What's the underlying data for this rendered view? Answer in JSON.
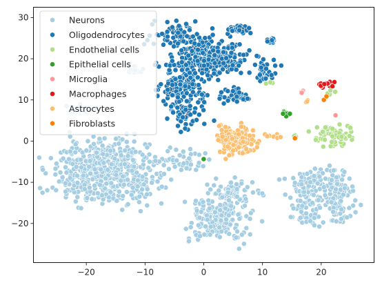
{
  "chart_data": {
    "type": "scatter",
    "title": "",
    "xlabel": "",
    "ylabel": "",
    "xlim": [
      -29,
      29
    ],
    "ylim": [
      -29.5,
      32.5
    ],
    "xticks": [
      -20,
      -10,
      0,
      10,
      20
    ],
    "yticks": [
      -20,
      -10,
      0,
      10,
      20,
      30
    ],
    "grid": false,
    "legend_position": "top-left",
    "series": [
      {
        "name": "Neurons",
        "color": "#a6cee3",
        "clusters": [
          {
            "center": [
              -16.5,
              -7.5
            ],
            "spread": [
              5.8,
              5.0
            ],
            "n": 560
          },
          {
            "center": [
              2.5,
              -19
            ],
            "spread": [
              3.8,
              3.6
            ],
            "n": 180
          },
          {
            "center": [
              5.2,
              -12.5
            ],
            "spread": [
              3.2,
              2.0
            ],
            "n": 70
          },
          {
            "center": [
              -2.5,
              -4.5
            ],
            "spread": [
              2.2,
              1.6
            ],
            "n": 40
          },
          {
            "center": [
              17.5,
              -14.5
            ],
            "spread": [
              2.0,
              4.2
            ],
            "n": 90
          },
          {
            "center": [
              22.5,
              -14.5
            ],
            "spread": [
              2.0,
              4.0
            ],
            "n": 90
          },
          {
            "center": [
              20,
              -9
            ],
            "spread": [
              3.5,
              1.5
            ],
            "n": 60
          },
          {
            "center": [
              -12,
              17.5
            ],
            "spread": [
              1.2,
              1.2
            ],
            "n": 12
          },
          {
            "center": [
              -21.5,
              8
            ],
            "spread": [
              2.0,
              0.8
            ],
            "n": 12
          }
        ]
      },
      {
        "name": "Oligodendrocytes",
        "color": "#1f78b4",
        "clusters": [
          {
            "center": [
              1.5,
              20.5
            ],
            "spread": [
              3.8,
              3.0
            ],
            "n": 260
          },
          {
            "center": [
              -3.5,
              14.5
            ],
            "spread": [
              3.0,
              4.2
            ],
            "n": 160
          },
          {
            "center": [
              -4.5,
              25.5
            ],
            "spread": [
              3.2,
              2.2
            ],
            "n": 70
          },
          {
            "center": [
              -3.5,
              6.5
            ],
            "spread": [
              1.6,
              2.5
            ],
            "n": 50
          },
          {
            "center": [
              6,
              27.2
            ],
            "spread": [
              1.3,
              0.7
            ],
            "n": 30
          },
          {
            "center": [
              5.5,
              11
            ],
            "spread": [
              1.6,
              1.3
            ],
            "n": 40
          },
          {
            "center": [
              10,
              17
            ],
            "spread": [
              1.6,
              1.4
            ],
            "n": 30
          },
          {
            "center": [
              11.5,
              24.5
            ],
            "spread": [
              0.9,
              0.6
            ],
            "n": 12
          }
        ]
      },
      {
        "name": "Endothelial cells",
        "color": "#b2df8a",
        "clusters": [
          {
            "center": [
              22.5,
              1.5
            ],
            "spread": [
              2.3,
              2.0
            ],
            "n": 70
          },
          {
            "center": [
              21.5,
              12
            ],
            "spread": [
              0.6,
              0.6
            ],
            "n": 4
          },
          {
            "center": [
              11,
              14.3
            ],
            "spread": [
              0.4,
              0.3
            ],
            "n": 3
          },
          {
            "center": [
              15.5,
              1.2
            ],
            "spread": [
              0.4,
              0.3
            ],
            "n": 3
          }
        ]
      },
      {
        "name": "Epithelial cells",
        "color": "#33a02c",
        "clusters": [
          {
            "center": [
              14,
              6.5
            ],
            "spread": [
              0.5,
              0.5
            ],
            "n": 9
          },
          {
            "center": [
              0.1,
              -4.3
            ],
            "spread": [
              0.2,
              0.2
            ],
            "n": 1
          }
        ]
      },
      {
        "name": "Microglia",
        "color": "#fb9a99",
        "clusters": [
          {
            "center": [
              16.8,
              12.2
            ],
            "spread": [
              0.4,
              0.4
            ],
            "n": 4
          },
          {
            "center": [
              22.5,
              6.2
            ],
            "spread": [
              0.3,
              0.3
            ],
            "n": 1
          }
        ]
      },
      {
        "name": "Macrophages",
        "color": "#e31a1c",
        "clusters": [
          {
            "center": [
              20.8,
              13.8
            ],
            "spread": [
              1.1,
              0.7
            ],
            "n": 18
          }
        ]
      },
      {
        "name": "Astrocytes",
        "color": "#fdbf6f",
        "clusters": [
          {
            "center": [
              5.5,
              0.3
            ],
            "spread": [
              2.1,
              2.4
            ],
            "n": 140
          },
          {
            "center": [
              11.8,
              1.2
            ],
            "spread": [
              1.2,
              0.5
            ],
            "n": 10
          },
          {
            "center": [
              17.5,
              9.5
            ],
            "spread": [
              0.8,
              0.5
            ],
            "n": 3
          }
        ]
      },
      {
        "name": "Fibroblasts",
        "color": "#ff7f00",
        "clusters": [
          {
            "center": [
              20.7,
              10.5
            ],
            "spread": [
              0.3,
              0.3
            ],
            "n": 2
          },
          {
            "center": [
              15.7,
              0.6
            ],
            "spread": [
              0.2,
              0.2
            ],
            "n": 1
          }
        ]
      }
    ]
  }
}
